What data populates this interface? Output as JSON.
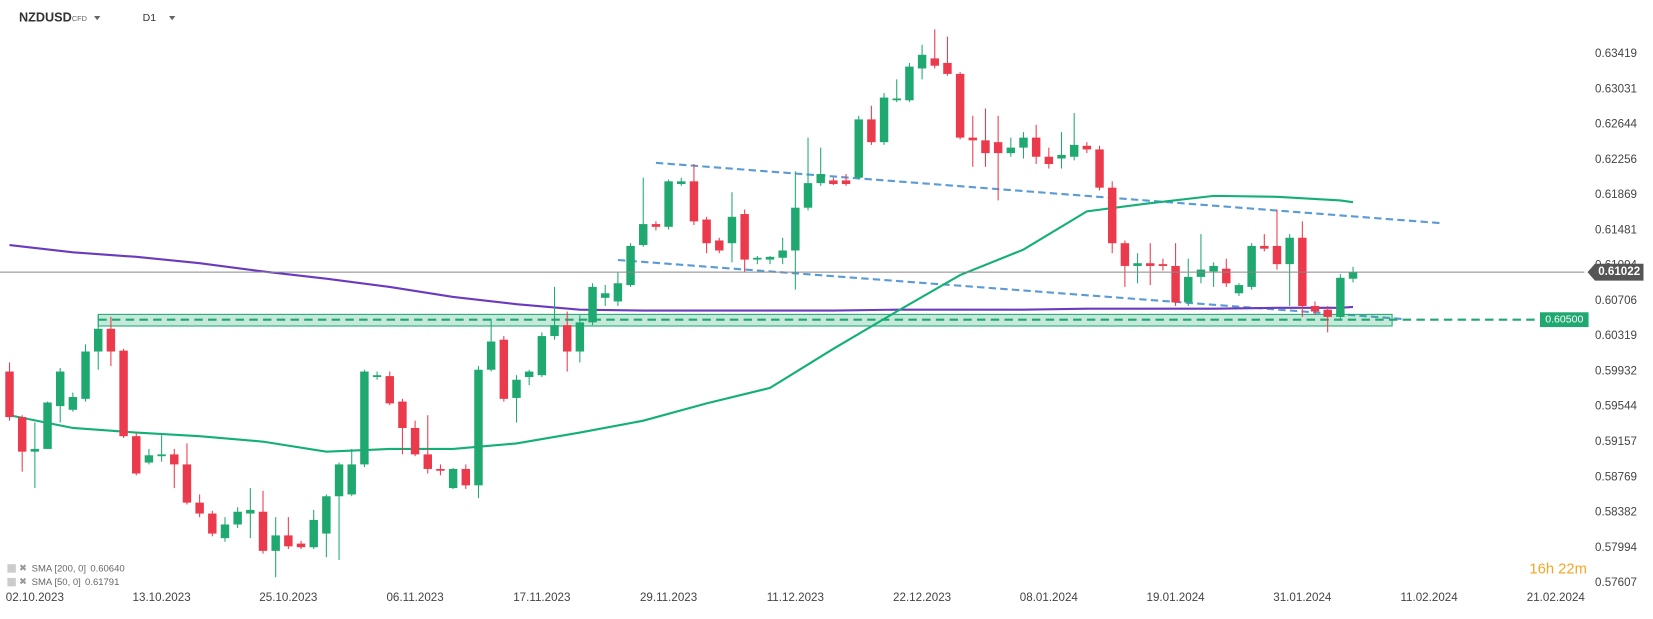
{
  "chart_data": {
    "type": "candlestick",
    "title": "NZDUSD",
    "subtitle": "CFD",
    "timeframe": "D1",
    "countdown": "16h 22m",
    "up_color": "#1fa971",
    "down_color": "#ec3a4d",
    "categories": [
      null,
      null,
      "02.10.2023",
      null,
      null,
      null,
      null,
      null,
      null,
      null,
      null,
      null,
      "13.10.2023",
      null,
      null,
      null,
      null,
      null,
      null,
      null,
      null,
      null,
      "25.10.2023",
      null,
      null,
      null,
      null,
      null,
      null,
      null,
      null,
      null,
      "06.11.2023",
      null,
      null,
      null,
      null,
      null,
      null,
      null,
      null,
      null,
      "17.11.2023",
      null,
      null,
      null,
      null,
      null,
      null,
      null,
      null,
      null,
      "29.11.2023",
      null,
      null,
      null,
      null,
      null,
      null,
      null,
      null,
      null,
      "11.12.2023",
      null,
      null,
      null,
      null,
      null,
      null,
      null,
      null,
      null,
      "22.12.2023",
      null,
      null,
      null,
      null,
      null,
      null,
      null,
      null,
      null,
      "08.01.2024",
      null,
      null,
      null,
      null,
      null,
      null,
      null,
      null,
      null,
      "19.01.2024",
      null,
      null,
      null,
      null,
      null,
      null,
      null,
      null,
      null,
      "31.01.2024",
      null,
      null,
      null,
      null,
      null,
      null,
      null,
      null,
      null,
      "11.02.2024",
      null,
      null,
      null,
      null,
      null,
      null,
      null,
      null,
      null,
      "21.02.2024"
    ],
    "open": [
      0.5993,
      0.5943,
      0.5905,
      0.5908,
      0.5955,
      0.5951,
      0.5963,
      0.6015,
      0.604,
      0.6016,
      0.5922,
      0.5893,
      0.59,
      0.5902,
      0.5891,
      0.5849,
      0.5837,
      0.581,
      0.5825,
      0.5837,
      0.5839,
      0.5796,
      0.5813,
      0.5804,
      0.58,
      0.5815,
      0.5856,
      0.5858,
      0.5891,
      0.5987,
      0.5988,
      0.596,
      0.5931,
      0.5902,
      0.5886,
      0.5865,
      0.5886,
      0.5868,
      0.5995,
      0.6028,
      0.5964,
      0.5987,
      0.5989,
      0.6032,
      0.6044,
      0.6015,
      0.6047,
      0.6074,
      0.607,
      0.6088,
      0.6132,
      0.6155,
      0.6152,
      0.6199,
      0.6202,
      0.616,
      0.6137,
      0.6134,
      0.6166,
      0.6116,
      0.6116,
      0.6118,
      0.6126,
      0.6173,
      0.62,
      0.6203,
      0.6203,
      0.6206,
      0.627,
      0.6245,
      0.6291,
      0.6291,
      0.6326,
      0.6337,
      0.6332,
      0.632,
      0.625,
      0.6247,
      0.6245,
      0.6233,
      0.6239,
      0.625,
      0.6229,
      0.6227,
      0.6229,
      0.6241,
      0.6237,
      0.6195,
      0.6134,
      0.6109,
      0.6112,
      0.6111,
      0.6109,
      0.6069,
      0.6097,
      0.6103,
      0.6106,
      0.6079,
      0.6086,
      0.6131,
      0.6131,
      0.6111,
      0.614,
      0.6065,
      0.6061,
      0.6053,
      0.6095,
      null,
      null,
      null,
      null,
      null,
      null,
      null,
      null,
      null,
      null,
      null,
      null,
      null,
      null,
      null,
      null
    ],
    "high": [
      0.6003,
      0.5945,
      0.5937,
      0.596,
      0.5997,
      0.597,
      0.6023,
      0.6055,
      0.6053,
      0.6018,
      0.5926,
      0.5908,
      0.5923,
      0.5908,
      0.5914,
      0.5858,
      0.584,
      0.5833,
      0.5844,
      0.5865,
      0.5862,
      0.5833,
      0.5833,
      0.5807,
      0.5841,
      0.5858,
      0.5893,
      0.5908,
      0.5995,
      0.5993,
      0.5993,
      0.5963,
      0.5939,
      0.5945,
      0.5891,
      0.5887,
      0.5891,
      0.5999,
      0.6051,
      0.6032,
      0.5989,
      0.5995,
      0.6036,
      0.6086,
      0.6059,
      0.6055,
      0.609,
      0.6088,
      0.6102,
      0.6134,
      0.6206,
      0.6158,
      0.6204,
      0.6206,
      0.6221,
      0.6163,
      0.614,
      0.619,
      0.6171,
      0.612,
      0.612,
      0.614,
      0.6213,
      0.625,
      0.6239,
      0.6206,
      0.621,
      0.6274,
      0.6285,
      0.6299,
      0.6314,
      0.6332,
      0.6352,
      0.6369,
      0.6361,
      0.6322,
      0.6274,
      0.6282,
      0.6274,
      0.625,
      0.6256,
      0.6264,
      0.6239,
      0.6256,
      0.6277,
      0.6245,
      0.6241,
      0.6202,
      0.6137,
      0.6123,
      0.6134,
      0.6117,
      0.6134,
      0.6117,
      0.6144,
      0.6113,
      0.6117,
      0.609,
      0.6134,
      0.6144,
      0.6171,
      0.6144,
      0.6158,
      0.607,
      0.6065,
      0.61,
      0.6108,
      null,
      null,
      null,
      null,
      null,
      null,
      null,
      null,
      null,
      null,
      null,
      null,
      null,
      null,
      null,
      null
    ],
    "low": [
      0.5939,
      0.5883,
      0.5865,
      0.5908,
      0.5937,
      0.5949,
      0.596,
      0.5995,
      0.5999,
      0.592,
      0.5879,
      0.5891,
      0.5894,
      0.5865,
      0.5847,
      0.5833,
      0.5812,
      0.5806,
      0.5821,
      0.581,
      0.5793,
      0.5767,
      0.5798,
      0.5798,
      0.5798,
      0.5789,
      0.5786,
      0.5856,
      0.5888,
      0.5984,
      0.5956,
      0.5902,
      0.59,
      0.5881,
      0.5879,
      0.5864,
      0.5864,
      0.5854,
      0.5993,
      0.596,
      0.5937,
      0.5978,
      0.5987,
      0.6028,
      0.5993,
      0.6003,
      0.6044,
      0.6065,
      0.6065,
      0.6086,
      0.613,
      0.6148,
      0.6149,
      0.6197,
      0.6154,
      0.6123,
      0.6123,
      0.6113,
      0.6102,
      0.6111,
      0.6111,
      0.6111,
      0.6083,
      0.617,
      0.6197,
      0.6198,
      0.6197,
      0.6204,
      0.6242,
      0.6242,
      0.6289,
      0.6289,
      0.6314,
      0.6326,
      0.6318,
      0.6248,
      0.6218,
      0.6218,
      0.6181,
      0.6229,
      0.6227,
      0.6221,
      0.6216,
      0.6216,
      0.6225,
      0.6233,
      0.6192,
      0.6123,
      0.6086,
      0.609,
      0.6088,
      0.6104,
      0.6065,
      0.6065,
      0.609,
      0.6086,
      0.6086,
      0.6076,
      0.6083,
      0.6125,
      0.6105,
      0.6065,
      0.6053,
      0.6055,
      0.6036,
      0.6051,
      0.6091,
      null,
      null,
      null,
      null,
      null,
      null,
      null,
      null,
      null,
      null,
      null,
      null,
      null,
      null,
      null,
      null
    ],
    "close": [
      0.5943,
      0.5905,
      0.5908,
      0.5959,
      0.5993,
      0.5965,
      0.6015,
      0.604,
      0.6015,
      0.5922,
      0.5881,
      0.5901,
      0.5902,
      0.5891,
      0.5849,
      0.5837,
      0.5815,
      0.5825,
      0.5839,
      0.5841,
      0.5796,
      0.5813,
      0.5801,
      0.58,
      0.583,
      0.5856,
      0.5891,
      0.5891,
      0.5993,
      0.5989,
      0.5958,
      0.5931,
      0.5902,
      0.5886,
      0.5884,
      0.5886,
      0.5868,
      0.5995,
      0.6026,
      0.5963,
      0.5984,
      0.5993,
      0.6032,
      0.6044,
      0.6015,
      0.6047,
      0.6086,
      0.6079,
      0.609,
      0.6131,
      0.6155,
      0.6152,
      0.6202,
      0.6202,
      0.6158,
      0.6134,
      0.6126,
      0.6163,
      0.6116,
      0.6118,
      0.6119,
      0.6126,
      0.6173,
      0.62,
      0.621,
      0.6199,
      0.6199,
      0.627,
      0.6245,
      0.6294,
      0.6293,
      0.6328,
      0.6341,
      0.6329,
      0.632,
      0.625,
      0.6247,
      0.6233,
      0.6233,
      0.6239,
      0.625,
      0.6229,
      0.6221,
      0.6231,
      0.6242,
      0.6237,
      0.6195,
      0.6134,
      0.6109,
      0.6112,
      0.6109,
      0.6109,
      0.6069,
      0.6097,
      0.6105,
      0.6109,
      0.609,
      0.6088,
      0.6131,
      0.6128,
      0.6111,
      0.614,
      0.6065,
      0.6059,
      0.6053,
      0.6096,
      0.61022,
      null,
      null,
      null,
      null,
      null,
      null,
      null,
      null,
      null,
      null,
      null,
      null,
      null,
      null,
      null,
      null
    ],
    "overlays": [
      {
        "name": "SMA [200, 0]",
        "color": "#6a3bbf",
        "last": {
          "value": 0.6064,
          "label": "0.60640"
        },
        "x": [
          0,
          5,
          10,
          15,
          20,
          25,
          30,
          35,
          40,
          45,
          50,
          55,
          60,
          65,
          70,
          75,
          80,
          85,
          90,
          95,
          100,
          105,
          106
        ],
        "values": [
          0.6132,
          0.6124,
          0.6119,
          0.6112,
          0.6103,
          0.6095,
          0.6086,
          0.6075,
          0.6067,
          0.6061,
          0.606,
          0.606,
          0.606,
          0.606,
          0.6061,
          0.6061,
          0.6061,
          0.6062,
          0.6062,
          0.6062,
          0.6063,
          0.6063,
          0.6064
        ]
      },
      {
        "name": "SMA [50, 0]",
        "color": "#12b076",
        "last": {
          "value": 0.61791,
          "label": "0.61791"
        },
        "x": [
          0,
          5,
          10,
          15,
          20,
          25,
          30,
          35,
          40,
          45,
          50,
          55,
          60,
          65,
          70,
          75,
          80,
          85,
          90,
          95,
          100,
          105,
          106
        ],
        "values": [
          0.5945,
          0.5931,
          0.5926,
          0.5922,
          0.5916,
          0.5905,
          0.5908,
          0.5908,
          0.5914,
          0.5926,
          0.5939,
          0.5958,
          0.5975,
          0.6018,
          0.6059,
          0.6099,
          0.6127,
          0.6169,
          0.6178,
          0.6186,
          0.6185,
          0.6181,
          0.61791
        ]
      }
    ],
    "last_price": 0.61022,
    "level": {
      "value": 0.605,
      "label": "0.60500"
    },
    "ylim": [
      0.5757,
      0.6401
    ],
    "yticks": [
      0.63419,
      0.63031,
      0.62644,
      0.62256,
      0.61869,
      0.61481,
      0.61094,
      0.60706,
      0.60319,
      0.59932,
      0.59544,
      0.59157,
      0.58769,
      0.58382,
      0.57994,
      0.57607
    ],
    "grid": false
  }
}
